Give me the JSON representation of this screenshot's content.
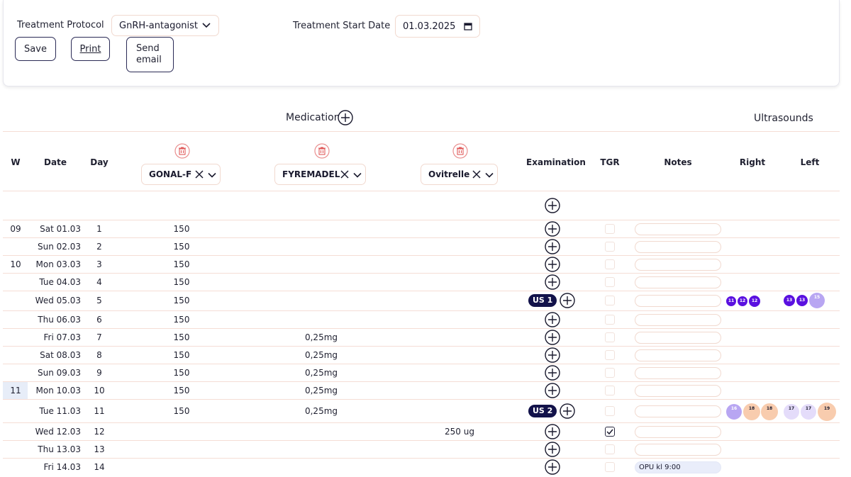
{
  "header": {
    "protocol_label": "Treatment Protocol",
    "protocol_value": "GnRH-antagonist",
    "start_label": "Treatment Start Date",
    "start_value": "01.03.2025",
    "save_label": "Save",
    "print_label": "Print",
    "email_line1": "Send",
    "email_line2": "email"
  },
  "sections": {
    "medication": "Medication",
    "ultrasounds": "Ultrasounds"
  },
  "columns": {
    "w": "W",
    "date": "Date",
    "day": "Day",
    "examination": "Examination",
    "tgr": "TGR",
    "notes": "Notes",
    "right": "Right",
    "left": "Left"
  },
  "medications": [
    "GONAL-F",
    "FYREMADEL",
    "Ovitrelle"
  ],
  "rows": [
    {
      "w": "09",
      "date": "Sat 01.03",
      "day": "1",
      "m1": "150",
      "m2": "",
      "m3": "",
      "note": ""
    },
    {
      "w": "",
      "date": "Sun 02.03",
      "day": "2",
      "m1": "150",
      "m2": "",
      "m3": "",
      "note": ""
    },
    {
      "w": "10",
      "date": "Mon 03.03",
      "day": "3",
      "m1": "150",
      "m2": "",
      "m3": "",
      "note": ""
    },
    {
      "w": "",
      "date": "Tue 04.03",
      "day": "4",
      "m1": "150",
      "m2": "",
      "m3": "",
      "note": ""
    },
    {
      "w": "",
      "date": "Wed 05.03",
      "day": "5",
      "m1": "150",
      "m2": "",
      "m3": "",
      "note": "",
      "us": "US 1"
    },
    {
      "w": "",
      "date": "Thu 06.03",
      "day": "6",
      "m1": "150",
      "m2": "",
      "m3": "",
      "note": ""
    },
    {
      "w": "",
      "date": "Fri 07.03",
      "day": "7",
      "m1": "150",
      "m2": "0,25mg",
      "m3": "",
      "note": ""
    },
    {
      "w": "",
      "date": "Sat 08.03",
      "day": "8",
      "m1": "150",
      "m2": "0,25mg",
      "m3": "",
      "note": ""
    },
    {
      "w": "",
      "date": "Sun 09.03",
      "day": "9",
      "m1": "150",
      "m2": "0,25mg",
      "m3": "",
      "note": ""
    },
    {
      "w": "11",
      "date": "Mon 10.03",
      "day": "10",
      "m1": "150",
      "m2": "0,25mg",
      "m3": "",
      "note": ""
    },
    {
      "w": "",
      "date": "Tue 11.03",
      "day": "11",
      "m1": "150",
      "m2": "0,25mg",
      "m3": "",
      "note": "",
      "us": "US 2"
    },
    {
      "w": "",
      "date": "Wed 12.03",
      "day": "12",
      "m1": "",
      "m2": "",
      "m3": "250 ug",
      "note": "",
      "tgr": true
    },
    {
      "w": "",
      "date": "Thu 13.03",
      "day": "13",
      "m1": "",
      "m2": "",
      "m3": "",
      "note": ""
    },
    {
      "w": "",
      "date": "Fri 14.03",
      "day": "14",
      "m1": "",
      "m2": "",
      "m3": "",
      "note": "OPU kl 9:00"
    }
  ],
  "follicles": {
    "us1_right": [
      "11",
      "12",
      "12"
    ],
    "us1_left": [
      "13",
      "13",
      "15"
    ],
    "us2_right": [
      "16",
      "18",
      "18"
    ],
    "us2_left": [
      "17",
      "17",
      "19"
    ]
  },
  "colors": {
    "accent_dark": "#12124a",
    "follicle_purple": "#5a10e0",
    "follicle_lavender": "#b8a6f2",
    "follicle_peach": "#f8ccae",
    "follicle_pale_lavender": "#e4dcfa",
    "grid_line": "#f5ddd5",
    "delete_red": "#e05a5a"
  }
}
